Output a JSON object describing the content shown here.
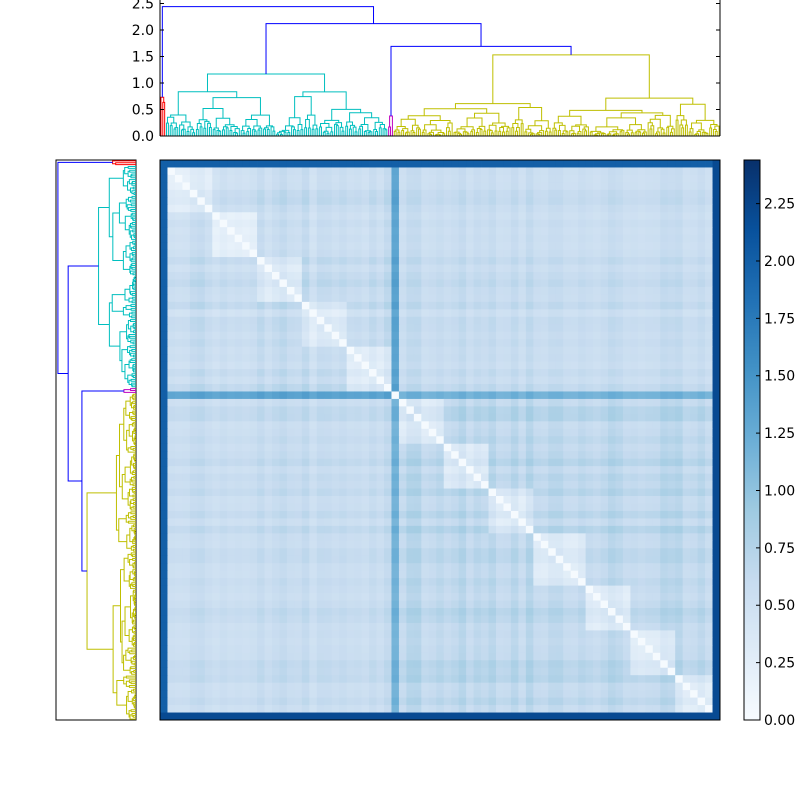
{
  "chart_data": {
    "type": "heatmap",
    "title": "",
    "colormap": "Blues",
    "matrix_size": 300,
    "top_dendrogram": {
      "ylim": [
        0,
        2.5
      ],
      "yticks": [
        0.0,
        0.5,
        1.0,
        1.5,
        2.0,
        2.5
      ],
      "ytick_labels": [
        "0.0",
        "0.5",
        "1.0",
        "1.5",
        "2.0",
        "2.5"
      ],
      "root_height": 2.44,
      "cluster_colors": [
        "#ff0000",
        "#00bfbf",
        "#bf00bf",
        "#bfbf00"
      ],
      "link_color": "#0000ff"
    },
    "left_dendrogram": {
      "cluster_colors": [
        "#ff0000",
        "#00bfbf",
        "#bf00bf",
        "#bfbf00"
      ],
      "link_color": "#0000ff"
    },
    "colorbar": {
      "range": [
        0,
        2.44
      ],
      "ticks": [
        0.0,
        0.25,
        0.5,
        0.75,
        1.0,
        1.25,
        1.5,
        1.75,
        2.0,
        2.25
      ],
      "tick_labels": [
        "0.00",
        "0.25",
        "0.50",
        "0.75",
        "1.00",
        "1.25",
        "1.50",
        "1.75",
        "2.00",
        "2.25"
      ]
    },
    "clusters_in_leaf_order": [
      {
        "name": "red",
        "leaf_start": 0,
        "leaf_end": 3,
        "color": "#ff0000"
      },
      {
        "name": "cyan",
        "leaf_start": 3,
        "leaf_end": 122,
        "color": "#00bfbf"
      },
      {
        "name": "magenta",
        "leaf_start": 122,
        "leaf_end": 125,
        "color": "#bf00bf"
      },
      {
        "name": "yellow",
        "leaf_start": 125,
        "leaf_end": 300,
        "color": "#bfbf00"
      }
    ]
  }
}
